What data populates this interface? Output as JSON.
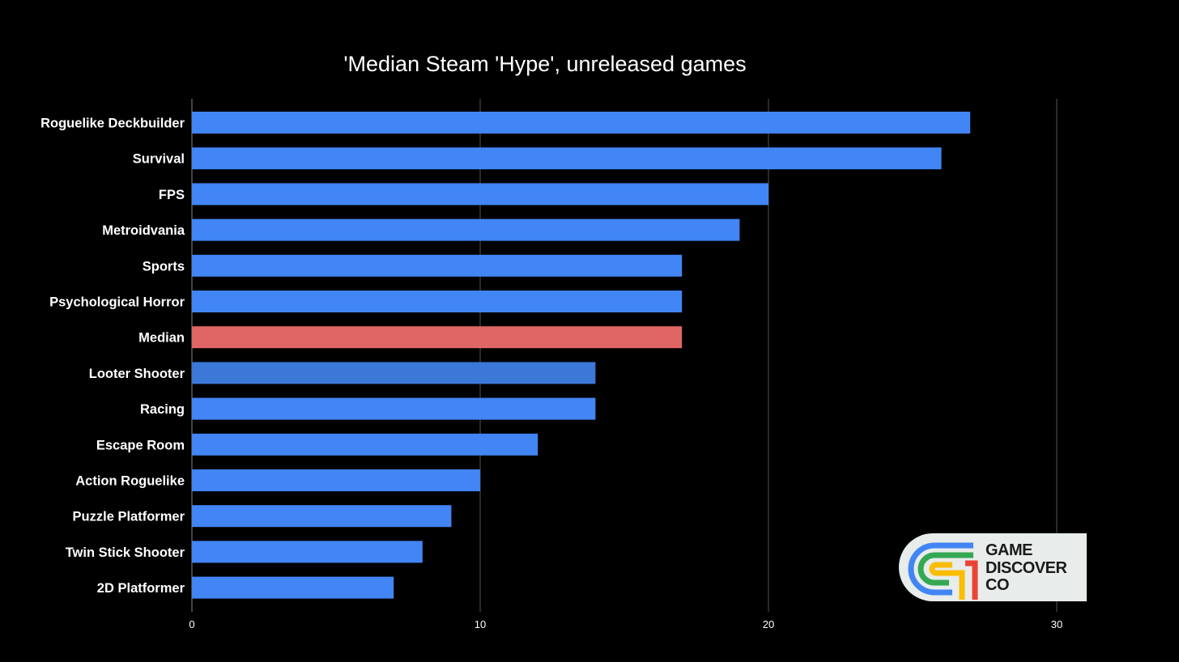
{
  "chart_data": {
    "type": "bar",
    "orientation": "horizontal",
    "title": "'Median Steam 'Hype', unreleased games",
    "xlabel": "",
    "ylabel": "",
    "categories": [
      "Roguelike Deckbuilder",
      "Survival",
      "FPS",
      "Metroidvania",
      "Sports",
      "Psychological Horror",
      "Median",
      "Looter Shooter",
      "Racing",
      "Escape Room",
      "Action Roguelike",
      "Puzzle Platformer",
      "Twin Stick Shooter",
      "2D Platformer"
    ],
    "values": [
      27,
      26,
      20,
      19,
      17,
      17,
      17,
      14,
      14,
      12,
      10,
      9,
      8,
      7
    ],
    "bar_colors": [
      "#4285f4",
      "#4285f4",
      "#4285f4",
      "#4285f4",
      "#4285f4",
      "#4285f4",
      "#e06666",
      "#3c78d8",
      "#4285f4",
      "#4285f4",
      "#4285f4",
      "#4285f4",
      "#4285f4",
      "#4285f4"
    ],
    "xlim": [
      0,
      30
    ],
    "ticks": [
      "0",
      "10",
      "20",
      "30"
    ],
    "tick_values": [
      0,
      10,
      20,
      30
    ],
    "grid": true,
    "legend": "none",
    "colors": {
      "background": "#000000",
      "bar": "#4285f4",
      "highlight": "#e06666",
      "grid": "#555555"
    }
  },
  "logo": {
    "lines": [
      "GAME",
      "DISCOVER",
      "CO"
    ],
    "icon": "game-discover-co-logo-icon",
    "colors": [
      "#4285f4",
      "#34a853",
      "#fbbc04",
      "#ea4335"
    ]
  }
}
